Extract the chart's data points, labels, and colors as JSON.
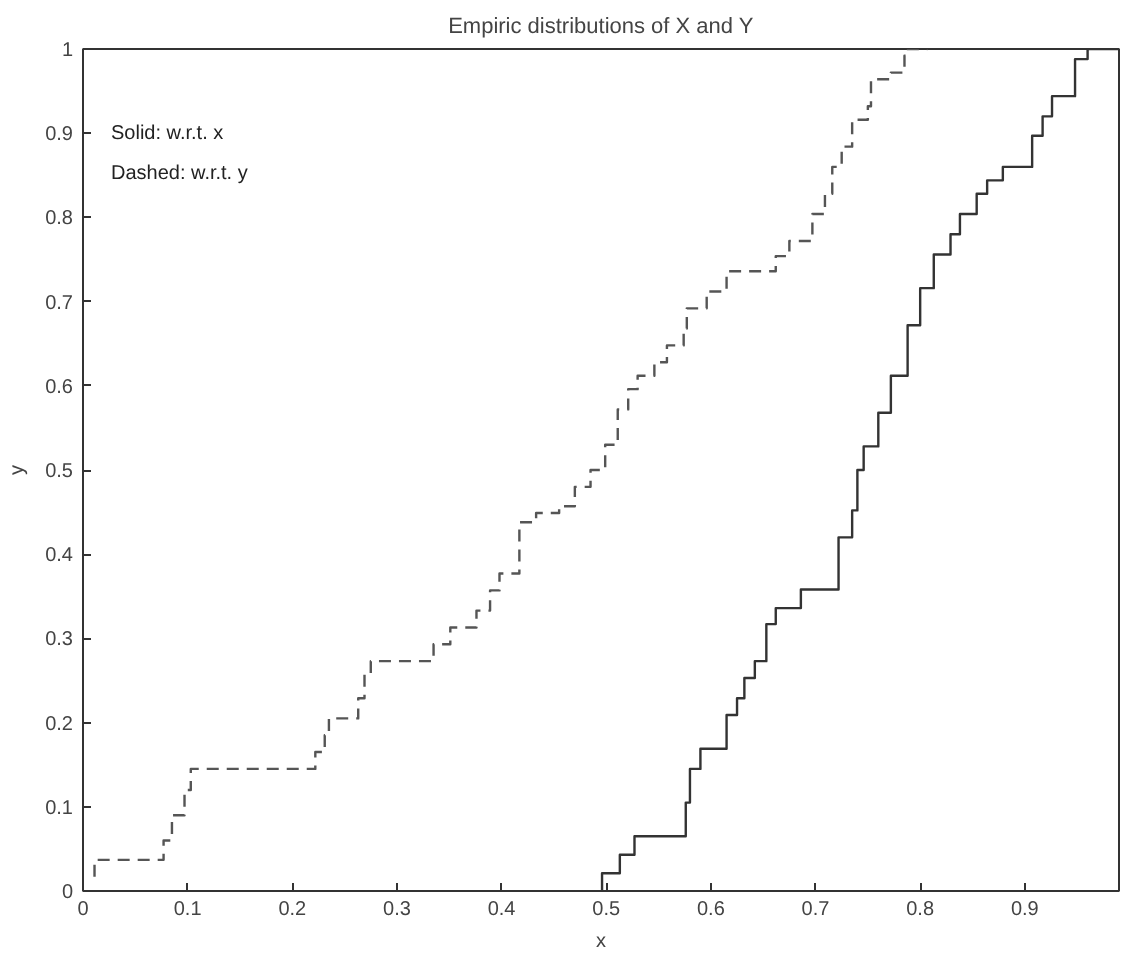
{
  "chart_data": {
    "type": "step",
    "title": "Empiric distributions of X and Y",
    "xlabel": "x",
    "ylabel": "y",
    "xlim": [
      0,
      0.99
    ],
    "ylim": [
      0,
      1
    ],
    "xticks": [
      0,
      0.1,
      0.2,
      0.3,
      0.4,
      0.5,
      0.6,
      0.7,
      0.8,
      0.9
    ],
    "yticks": [
      0,
      0.1,
      0.2,
      0.3,
      0.4,
      0.5,
      0.6,
      0.7,
      0.8,
      0.9,
      1
    ],
    "annotations": [
      "Solid: w.r.t. x",
      "Dashed: w.r.t. y"
    ],
    "series": [
      {
        "color": "#333333",
        "line_style": "solid",
        "x": [
          0.496,
          0.496,
          0.513,
          0.527,
          0.576,
          0.58,
          0.59,
          0.615,
          0.625,
          0.632,
          0.642,
          0.653,
          0.662,
          0.686,
          0.722,
          0.735,
          0.74,
          0.746,
          0.76,
          0.772,
          0.788,
          0.8,
          0.813,
          0.829,
          0.838,
          0.854,
          0.864,
          0.879,
          0.907,
          0.917,
          0.926,
          0.948,
          0.96,
          0.99
        ],
        "values": [
          0,
          0.021,
          0.043,
          0.065,
          0.105,
          0.145,
          0.169,
          0.209,
          0.229,
          0.253,
          0.273,
          0.317,
          0.336,
          0.358,
          0.42,
          0.452,
          0.5,
          0.528,
          0.568,
          0.612,
          0.672,
          0.716,
          0.756,
          0.78,
          0.804,
          0.828,
          0.844,
          0.86,
          0.897,
          0.92,
          0.944,
          0.988,
          1.0,
          1.0
        ]
      },
      {
        "color": "#555555",
        "line_style": "dashed",
        "x": [
          0.011,
          0.011,
          0.077,
          0.085,
          0.097,
          0.103,
          0.222,
          0.231,
          0.235,
          0.263,
          0.269,
          0.275,
          0.335,
          0.351,
          0.376,
          0.389,
          0.398,
          0.417,
          0.433,
          0.455,
          0.47,
          0.485,
          0.499,
          0.511,
          0.521,
          0.53,
          0.546,
          0.558,
          0.574,
          0.577,
          0.596,
          0.615,
          0.662,
          0.675,
          0.697,
          0.709,
          0.716,
          0.725,
          0.735,
          0.75,
          0.753,
          0.772,
          0.785,
          0.787,
          0.807
        ],
        "values": [
          0.017,
          0.037,
          0.06,
          0.09,
          0.12,
          0.145,
          0.165,
          0.185,
          0.205,
          0.229,
          0.257,
          0.273,
          0.293,
          0.313,
          0.333,
          0.357,
          0.377,
          0.438,
          0.449,
          0.457,
          0.48,
          0.5,
          0.53,
          0.572,
          0.596,
          0.612,
          0.628,
          0.648,
          0.668,
          0.692,
          0.712,
          0.736,
          0.754,
          0.772,
          0.804,
          0.828,
          0.86,
          0.884,
          0.916,
          0.932,
          0.964,
          0.972,
          0.992,
          1.0,
          1.0
        ]
      }
    ]
  }
}
